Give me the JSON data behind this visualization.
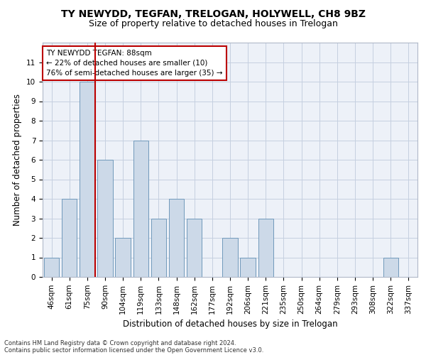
{
  "title": "TY NEWYDD, TEGFAN, TRELOGAN, HOLYWELL, CH8 9BZ",
  "subtitle": "Size of property relative to detached houses in Trelogan",
  "xlabel": "Distribution of detached houses by size in Trelogan",
  "ylabel": "Number of detached properties",
  "categories": [
    "46sqm",
    "61sqm",
    "75sqm",
    "90sqm",
    "104sqm",
    "119sqm",
    "133sqm",
    "148sqm",
    "162sqm",
    "177sqm",
    "192sqm",
    "206sqm",
    "221sqm",
    "235sqm",
    "250sqm",
    "264sqm",
    "279sqm",
    "293sqm",
    "308sqm",
    "322sqm",
    "337sqm"
  ],
  "values": [
    1,
    4,
    10,
    6,
    2,
    7,
    3,
    4,
    3,
    0,
    2,
    1,
    3,
    0,
    0,
    0,
    0,
    0,
    0,
    1,
    0
  ],
  "bar_color": "#ccd9e8",
  "bar_edge_color": "#7099bb",
  "grid_color": "#c5cfe0",
  "background_color": "#edf1f8",
  "marker_label": "TY NEWYDD TEGFAN: 88sqm",
  "annotation_line1": "← 22% of detached houses are smaller (10)",
  "annotation_line2": "76% of semi-detached houses are larger (35) →",
  "annotation_box_color": "#bb0000",
  "ylim": [
    0,
    12
  ],
  "yticks": [
    0,
    1,
    2,
    3,
    4,
    5,
    6,
    7,
    8,
    9,
    10,
    11
  ],
  "footer1": "Contains HM Land Registry data © Crown copyright and database right 2024.",
  "footer2": "Contains public sector information licensed under the Open Government Licence v3.0.",
  "title_fontsize": 10,
  "subtitle_fontsize": 9,
  "tick_fontsize": 7.5,
  "ylabel_fontsize": 8.5,
  "xlabel_fontsize": 8.5,
  "annotation_fontsize": 7.5,
  "footer_fontsize": 6
}
